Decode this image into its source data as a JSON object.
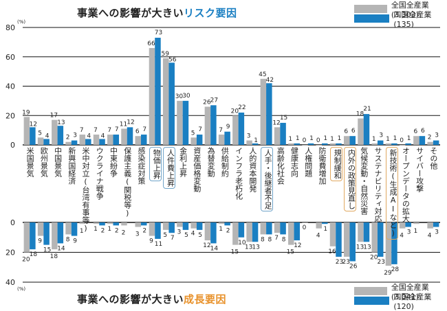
{
  "colors": {
    "national": "#b5b5b5",
    "shikoku": "#1a7fc2",
    "risk_accent": "#1a7fc2",
    "growth_accent": "#e8912a"
  },
  "chart_data": [
    {
      "type": "bar",
      "title_prefix": "事業への影響が大きい",
      "title_emphasis": "リスク要因",
      "ylabel": "(%)",
      "ylim": [
        0,
        80
      ],
      "yticks": [
        0,
        20,
        40,
        60,
        80
      ],
      "legend_position": "top-right",
      "series": [
        {
          "name": "全国全産業(3,303)",
          "values": [
            19,
            5,
            17,
            2,
            7,
            7,
            7,
            11,
            6,
            66,
            59,
            30,
            5,
            26,
            7,
            20,
            3,
            45,
            12,
            1,
            0,
            0,
            1,
            6,
            18,
            1,
            1,
            0,
            6,
            2
          ]
        },
        {
          "name": "四国全産業(135)",
          "values": [
            12,
            4,
            13,
            3,
            4,
            4,
            7,
            12,
            7,
            73,
            56,
            30,
            7,
            27,
            9,
            22,
            1,
            42,
            15,
            1,
            1,
            1,
            1,
            6,
            21,
            3,
            1,
            1,
            6,
            3
          ]
        }
      ]
    },
    {
      "type": "bar",
      "orientation": "downward",
      "title_prefix": "事業への影響が大きい",
      "title_emphasis": "成長要因",
      "ylabel": "(%)",
      "ylim": [
        0,
        40
      ],
      "yticks": [
        0,
        20,
        40
      ],
      "legend_position": "bottom-right",
      "series": [
        {
          "name": "全国全産業(3,041)",
          "values": [
            20,
            9,
            18,
            8,
            1,
            1,
            1,
            2,
            3,
            9,
            5,
            3,
            4,
            12,
            1,
            15,
            13,
            8,
            7,
            15,
            0,
            4,
            16,
            23,
            13,
            20,
            29,
            4,
            1,
            4
          ]
        },
        {
          "name": "四国全産業(120)",
          "values": [
            18,
            15,
            14,
            9,
            null,
            2,
            2,
            null,
            2,
            11,
            7,
            5,
            5,
            14,
            2,
            10,
            13,
            8,
            8,
            12,
            null,
            1,
            23,
            26,
            13,
            23,
            28,
            3,
            null,
            3
          ]
        }
      ]
    }
  ],
  "categories": [
    "米国景気",
    "欧州景気",
    "中国景気",
    "新興国経済",
    "米中対立(台湾有事等)",
    "ウクライナ戦争",
    "中東紛争",
    "保護主義(関税等)",
    "感染症対策",
    "物価上昇",
    "人件費上昇",
    "金利上昇",
    "資産価格変動",
    "為替変動",
    "供給制約",
    "インフラ老朽化",
    "人的資本開発",
    "人手・後継者不足",
    "高齢化社会",
    "健康志向",
    "人権問題",
    "防衛費増加",
    "規制緩和",
    "内外の政策見直し",
    "気候変動・自然災害",
    "サステナビリティ対応",
    "新技術(生成AIなど)",
    "オープンデータの拡大",
    "サイバー攻撃",
    "その他"
  ],
  "highlight_risk": [
    9,
    10,
    17
  ],
  "highlight_growth": [
    22,
    23,
    26
  ]
}
